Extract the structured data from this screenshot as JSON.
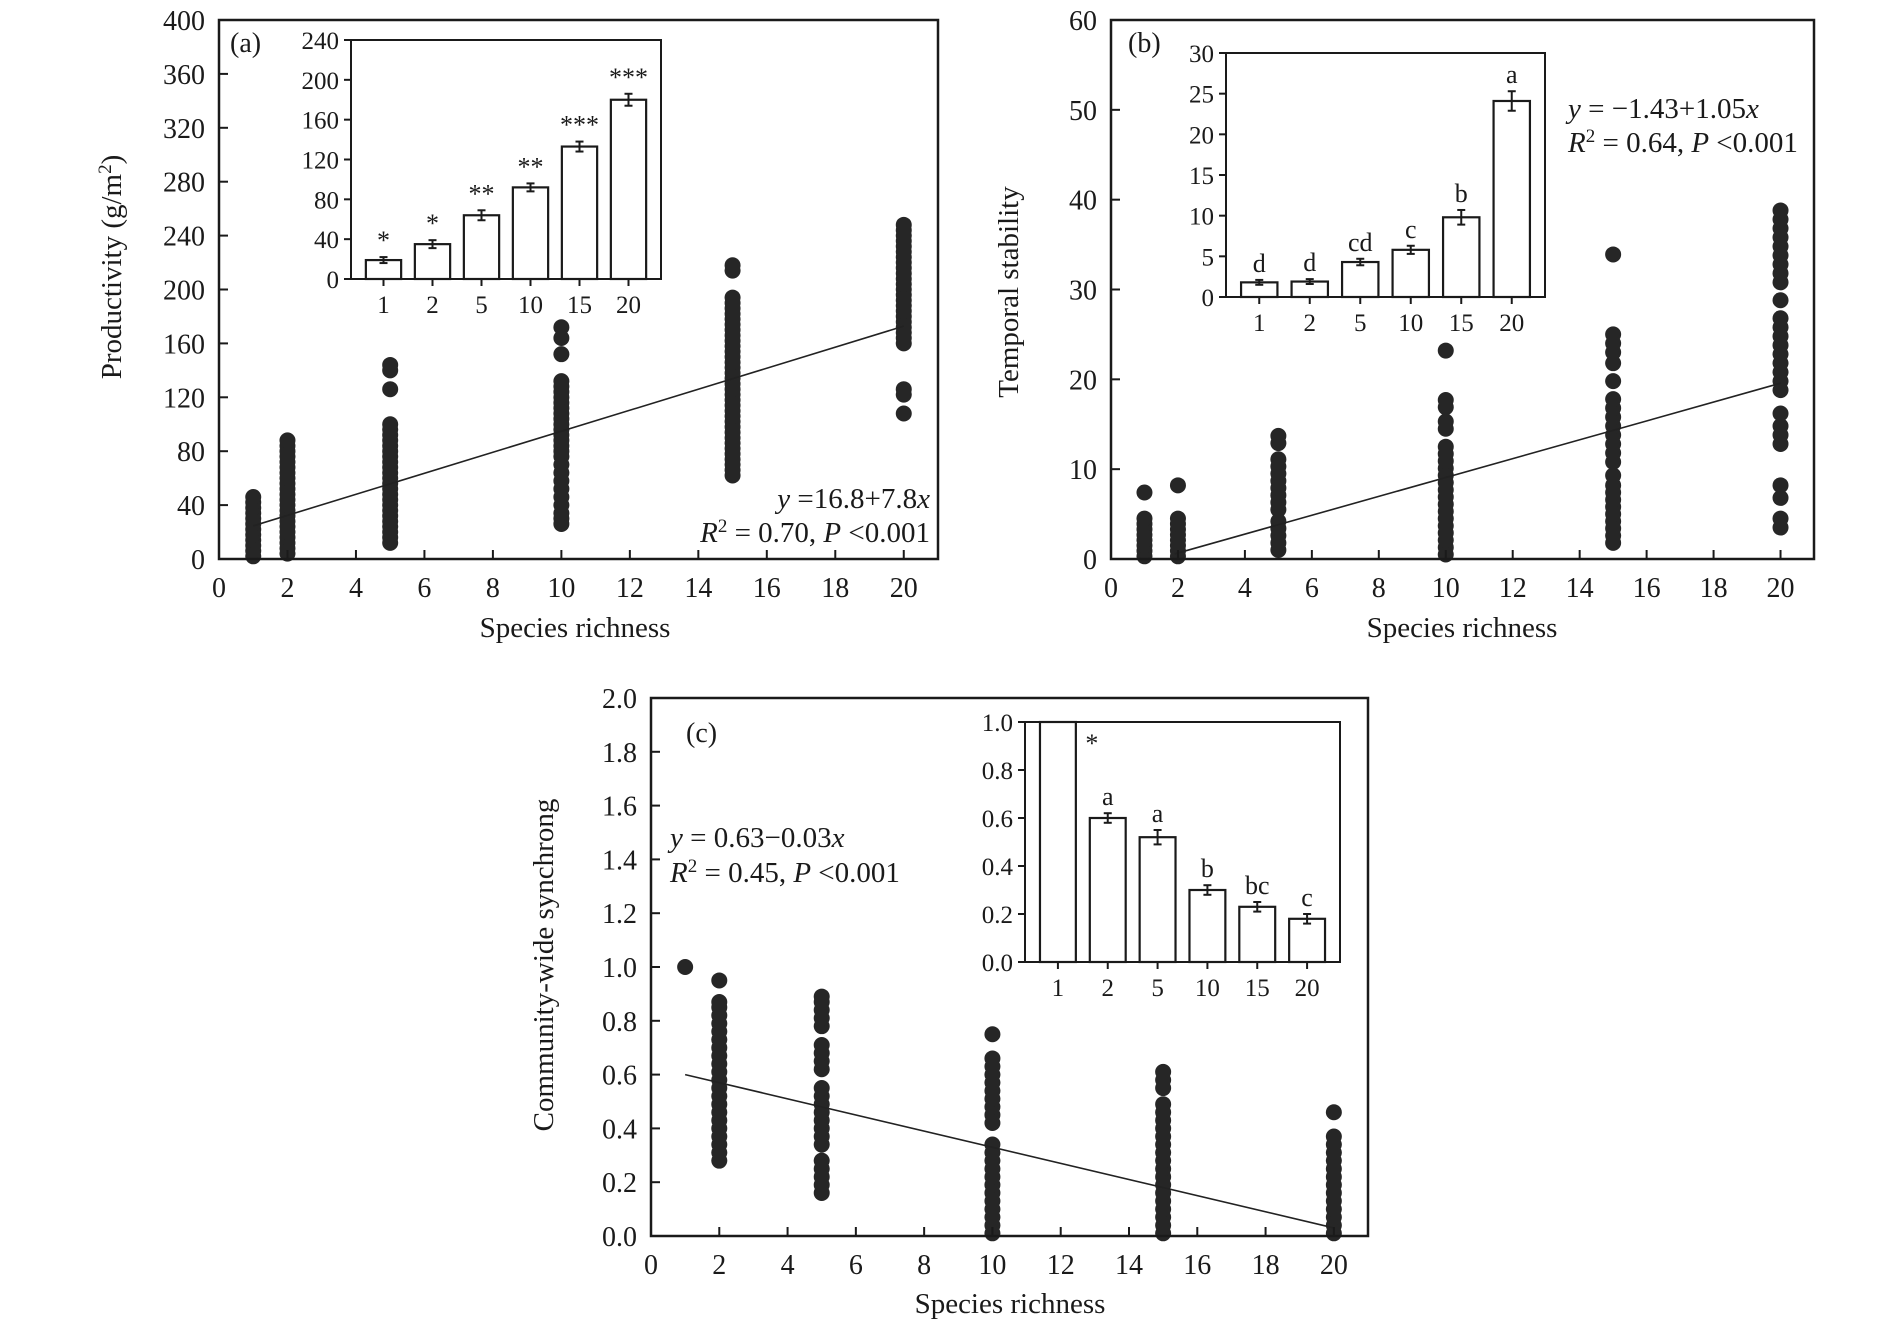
{
  "chart_data": [
    {
      "id": "a",
      "type": "scatter",
      "panel_label": "(a)",
      "xlabel": "Species richness",
      "ylabel": "Productivity (g/m²)",
      "xlim": [
        0,
        21
      ],
      "ylim": [
        0,
        400
      ],
      "xticks": [
        0,
        2,
        4,
        6,
        8,
        10,
        12,
        14,
        16,
        18,
        20
      ],
      "yticks": [
        0,
        40,
        80,
        120,
        160,
        200,
        240,
        280,
        320,
        360,
        400
      ],
      "fit": {
        "intercept": 16.8,
        "slope": 7.8,
        "x_range": [
          1,
          20
        ]
      },
      "equation_line1": "y =16.8+7.8x",
      "equation_line2": "R² = 0.70, P <0.001",
      "points": [
        {
          "x": 1,
          "y_values": [
            2,
            6,
            10,
            14,
            18,
            22,
            26,
            30,
            34,
            38,
            42,
            46
          ]
        },
        {
          "x": 2,
          "y_values": [
            4,
            8,
            12,
            16,
            20,
            24,
            28,
            32,
            36,
            40,
            44,
            48,
            52,
            56,
            60,
            64,
            68,
            72,
            76,
            80,
            84,
            88
          ]
        },
        {
          "x": 5,
          "y_values": [
            12,
            16,
            20,
            24,
            28,
            32,
            36,
            40,
            44,
            48,
            52,
            56,
            60,
            64,
            68,
            72,
            76,
            80,
            84,
            88,
            92,
            96,
            100,
            126,
            140,
            144
          ]
        },
        {
          "x": 10,
          "y_values": [
            26,
            30,
            34,
            40,
            46,
            52,
            58,
            64,
            70,
            76,
            80,
            84,
            88,
            92,
            96,
            100,
            104,
            108,
            112,
            116,
            120,
            124,
            128,
            132,
            152,
            164,
            172
          ]
        },
        {
          "x": 15,
          "y_values": [
            62,
            66,
            70,
            74,
            78,
            82,
            86,
            90,
            94,
            98,
            102,
            106,
            110,
            114,
            118,
            122,
            126,
            130,
            134,
            138,
            142,
            146,
            150,
            154,
            158,
            162,
            166,
            170,
            174,
            178,
            182,
            186,
            190,
            194,
            214,
            218
          ]
        },
        {
          "x": 20,
          "y_values": [
            108,
            122,
            126,
            160,
            164,
            168,
            172,
            176,
            180,
            184,
            188,
            192,
            196,
            200,
            204,
            208,
            212,
            216,
            220,
            224,
            228,
            232,
            236,
            240,
            244,
            248
          ]
        }
      ],
      "inset": {
        "type": "bar",
        "categories": [
          "1",
          "2",
          "5",
          "10",
          "15",
          "20"
        ],
        "values": [
          19,
          35,
          64,
          92,
          133,
          180
        ],
        "errors": [
          3,
          4,
          5,
          4,
          5,
          6
        ],
        "annotations": [
          "*",
          "*",
          "**",
          "**",
          "***",
          "***"
        ],
        "ylim": [
          0,
          240
        ],
        "yticks": [
          0,
          40,
          80,
          120,
          160,
          200,
          240
        ]
      }
    },
    {
      "id": "b",
      "type": "scatter",
      "panel_label": "(b)",
      "xlabel": "Species richness",
      "ylabel": "Temporal stability",
      "xlim": [
        0,
        21
      ],
      "ylim": [
        0,
        60
      ],
      "xticks": [
        0,
        2,
        4,
        6,
        8,
        10,
        12,
        14,
        16,
        18,
        20
      ],
      "yticks": [
        0,
        10,
        20,
        30,
        40,
        50,
        60
      ],
      "fit": {
        "intercept": -1.43,
        "slope": 1.05,
        "x_range": [
          1.9,
          20
        ]
      },
      "equation_line1": "y = −1.43+1.05x",
      "equation_line2": "R² = 0.64, P <0.001",
      "points": [
        {
          "x": 1,
          "y_values": [
            0.3,
            0.9,
            1.5,
            2.1,
            2.7,
            3.3,
            3.9,
            4.5,
            7.4
          ]
        },
        {
          "x": 2,
          "y_values": [
            0.3,
            0.9,
            1.5,
            2.1,
            2.7,
            3.3,
            3.9,
            4.5,
            8.2
          ]
        },
        {
          "x": 5,
          "y_values": [
            1.0,
            1.8,
            2.6,
            3.4,
            4.2,
            5.5,
            6.3,
            7.1,
            7.9,
            8.7,
            9.5,
            10.3,
            11.1,
            12.9,
            13.7
          ]
        },
        {
          "x": 10,
          "y_values": [
            0.5,
            1.3,
            2.1,
            2.9,
            3.7,
            4.5,
            5.3,
            6.1,
            6.9,
            7.7,
            8.5,
            9.3,
            10.1,
            10.9,
            11.7,
            12.5,
            14.5,
            15.3,
            16.9,
            17.7,
            23.2
          ]
        },
        {
          "x": 15,
          "y_values": [
            1.8,
            2.6,
            3.4,
            4.2,
            5.0,
            5.8,
            6.6,
            7.4,
            8.2,
            9.3,
            10.8,
            11.8,
            12.8,
            13.8,
            14.8,
            15.8,
            16.8,
            17.8,
            19.8,
            21.8,
            23.0,
            24.0,
            25.0,
            33.9
          ]
        },
        {
          "x": 20,
          "y_values": [
            3.5,
            4.5,
            6.8,
            8.2,
            12.8,
            13.8,
            14.8,
            16.2,
            18.8,
            19.8,
            20.8,
            21.8,
            22.8,
            23.8,
            24.8,
            25.8,
            26.8,
            28.8,
            30.8,
            31.8,
            32.8,
            33.8,
            34.8,
            35.8,
            36.8,
            37.8,
            38.8
          ]
        }
      ],
      "inset": {
        "type": "bar",
        "categories": [
          "1",
          "2",
          "5",
          "10",
          "15",
          "20"
        ],
        "values": [
          1.8,
          1.9,
          4.3,
          5.8,
          9.8,
          24.1
        ],
        "errors": [
          0.3,
          0.3,
          0.4,
          0.5,
          0.9,
          1.2
        ],
        "annotations": [
          "d",
          "d",
          "cd",
          "c",
          "b",
          "a"
        ],
        "ylim": [
          0,
          30
        ],
        "yticks": [
          0,
          5,
          10,
          15,
          20,
          25,
          30
        ]
      }
    },
    {
      "id": "c",
      "type": "scatter",
      "panel_label": "(c)",
      "xlabel": "Species richness",
      "ylabel": "Community-wide synchrong",
      "xlim": [
        0,
        21
      ],
      "ylim": [
        0,
        2.0
      ],
      "xticks": [
        0,
        2,
        4,
        6,
        8,
        10,
        12,
        14,
        16,
        18,
        20
      ],
      "yticks": [
        0.0,
        0.2,
        0.4,
        0.6,
        0.8,
        1.0,
        1.2,
        1.4,
        1.6,
        1.8,
        2.0
      ],
      "fit": {
        "intercept": 0.63,
        "slope": -0.03,
        "x_range": [
          1,
          20
        ]
      },
      "equation_line1": "y = 0.63−0.03x",
      "equation_line2": "R² = 0.45, P <0.001",
      "points": [
        {
          "x": 1,
          "y_values": [
            1.0
          ]
        },
        {
          "x": 2,
          "y_values": [
            0.28,
            0.31,
            0.34,
            0.37,
            0.4,
            0.43,
            0.46,
            0.49,
            0.52,
            0.55,
            0.58,
            0.61,
            0.64,
            0.67,
            0.7,
            0.73,
            0.76,
            0.79,
            0.82,
            0.85,
            0.87,
            0.95
          ]
        },
        {
          "x": 5,
          "y_values": [
            0.16,
            0.19,
            0.22,
            0.25,
            0.28,
            0.34,
            0.37,
            0.4,
            0.43,
            0.46,
            0.49,
            0.52,
            0.55,
            0.62,
            0.65,
            0.68,
            0.71,
            0.78,
            0.81,
            0.84,
            0.87,
            0.89
          ]
        },
        {
          "x": 10,
          "y_values": [
            0.01,
            0.04,
            0.07,
            0.1,
            0.13,
            0.16,
            0.19,
            0.22,
            0.25,
            0.28,
            0.31,
            0.34,
            0.42,
            0.45,
            0.48,
            0.51,
            0.54,
            0.57,
            0.6,
            0.63,
            0.66,
            0.75
          ]
        },
        {
          "x": 15,
          "y_values": [
            0.01,
            0.04,
            0.07,
            0.1,
            0.13,
            0.16,
            0.19,
            0.22,
            0.25,
            0.28,
            0.31,
            0.34,
            0.37,
            0.4,
            0.43,
            0.46,
            0.49,
            0.55,
            0.58,
            0.61
          ]
        },
        {
          "x": 20,
          "y_values": [
            0.01,
            0.04,
            0.07,
            0.1,
            0.13,
            0.16,
            0.19,
            0.22,
            0.25,
            0.28,
            0.31,
            0.34,
            0.37,
            0.46
          ]
        }
      ],
      "inset": {
        "type": "bar",
        "categories": [
          "1",
          "2",
          "5",
          "10",
          "15",
          "20"
        ],
        "values": [
          1.0,
          0.6,
          0.52,
          0.3,
          0.23,
          0.18
        ],
        "errors": [
          0,
          0.02,
          0.03,
          0.02,
          0.02,
          0.02
        ],
        "annotations": [
          "*",
          "a",
          "a",
          "b",
          "bc",
          "c"
        ],
        "ylim": [
          0,
          1.0
        ],
        "yticks": [
          0.0,
          0.2,
          0.4,
          0.6,
          0.8,
          1.0
        ]
      }
    }
  ]
}
